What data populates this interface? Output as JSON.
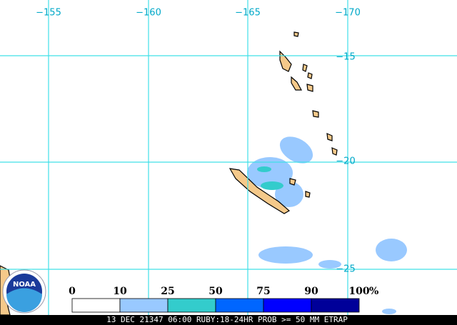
{
  "map": {
    "lon_labels": [
      "−155",
      "−160",
      "−165",
      "−170"
    ],
    "lat_labels": [
      "−15",
      "−20",
      "−25"
    ],
    "logo_text": "NOAA",
    "legend": {
      "stops": [
        0,
        10,
        25,
        50,
        75,
        90,
        100
      ],
      "unit": "%",
      "colors": [
        "#ffffff",
        "#99c9ff",
        "#33cccc",
        "#0066ff",
        "#0000ff",
        "#000099"
      ]
    },
    "footer": "13 DEC 21347 06:00 RUBY:18-24HR PROB >= 50 MM ETRAP"
  }
}
